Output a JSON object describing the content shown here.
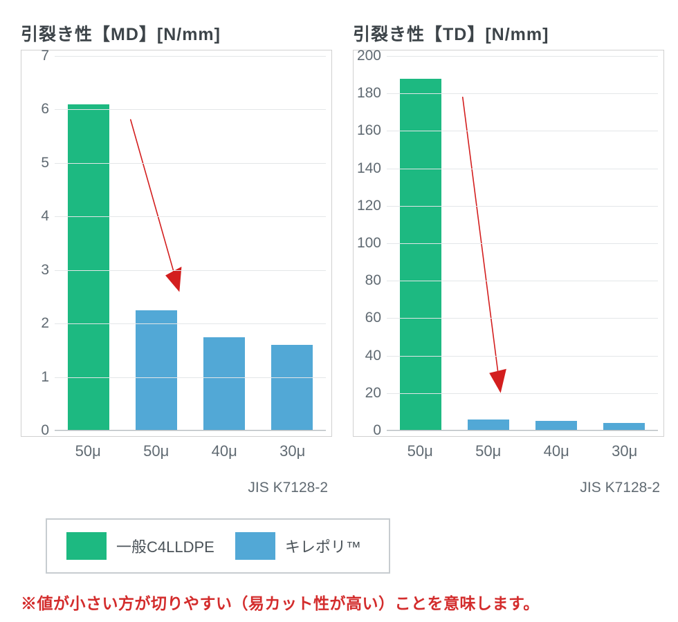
{
  "colors": {
    "series_a": "#1db981",
    "series_b": "#52a8d6",
    "grid": "#e3e6e8",
    "axis": "#b3b9bd",
    "text": "#606a72",
    "title": "#3d4449",
    "arrow": "#d31e1e",
    "footnote": "#d32c2c",
    "legend_border": "#c7ccd0",
    "background": "#ffffff"
  },
  "typography": {
    "title_fontsize": 25,
    "tick_fontsize": 21,
    "xtick_fontsize": 22,
    "legend_fontsize": 22,
    "footnote_fontsize": 23
  },
  "chart_left": {
    "type": "bar",
    "title": "引裂き性【MD】[N/mm]",
    "ylim": [
      0,
      7
    ],
    "ytick_step": 1,
    "yticks": [
      0,
      1,
      2,
      3,
      4,
      5,
      6,
      7
    ],
    "categories": [
      "50μ",
      "50μ",
      "40μ",
      "30μ"
    ],
    "values": [
      6.1,
      2.25,
      1.75,
      1.6
    ],
    "bar_series": [
      "a",
      "b",
      "b",
      "b"
    ],
    "bar_width": 0.62,
    "standard": "JIS K7128-2",
    "arrow": {
      "from_xy_pct": [
        28,
        17
      ],
      "to_xy_pct": [
        46,
        63
      ]
    }
  },
  "chart_right": {
    "type": "bar",
    "title": "引裂き性【TD】[N/mm]",
    "ylim": [
      0,
      200
    ],
    "ytick_step": 20,
    "yticks": [
      0,
      20,
      40,
      60,
      80,
      100,
      120,
      140,
      160,
      180,
      200
    ],
    "categories": [
      "50μ",
      "50μ",
      "40μ",
      "30μ"
    ],
    "values": [
      188,
      6,
      5,
      4
    ],
    "bar_series": [
      "a",
      "b",
      "b",
      "b"
    ],
    "bar_width": 0.62,
    "standard": "JIS K7128-2",
    "arrow": {
      "from_xy_pct": [
        28,
        11
      ],
      "to_xy_pct": [
        42,
        90
      ]
    }
  },
  "legend": {
    "items": [
      {
        "label": "一般C4LLDPE",
        "color_key": "series_a"
      },
      {
        "label": "キレポリ™",
        "color_key": "series_b"
      }
    ]
  },
  "footnote": "※値が小さい方が切りやすい（易カット性が高い）ことを意味します。"
}
